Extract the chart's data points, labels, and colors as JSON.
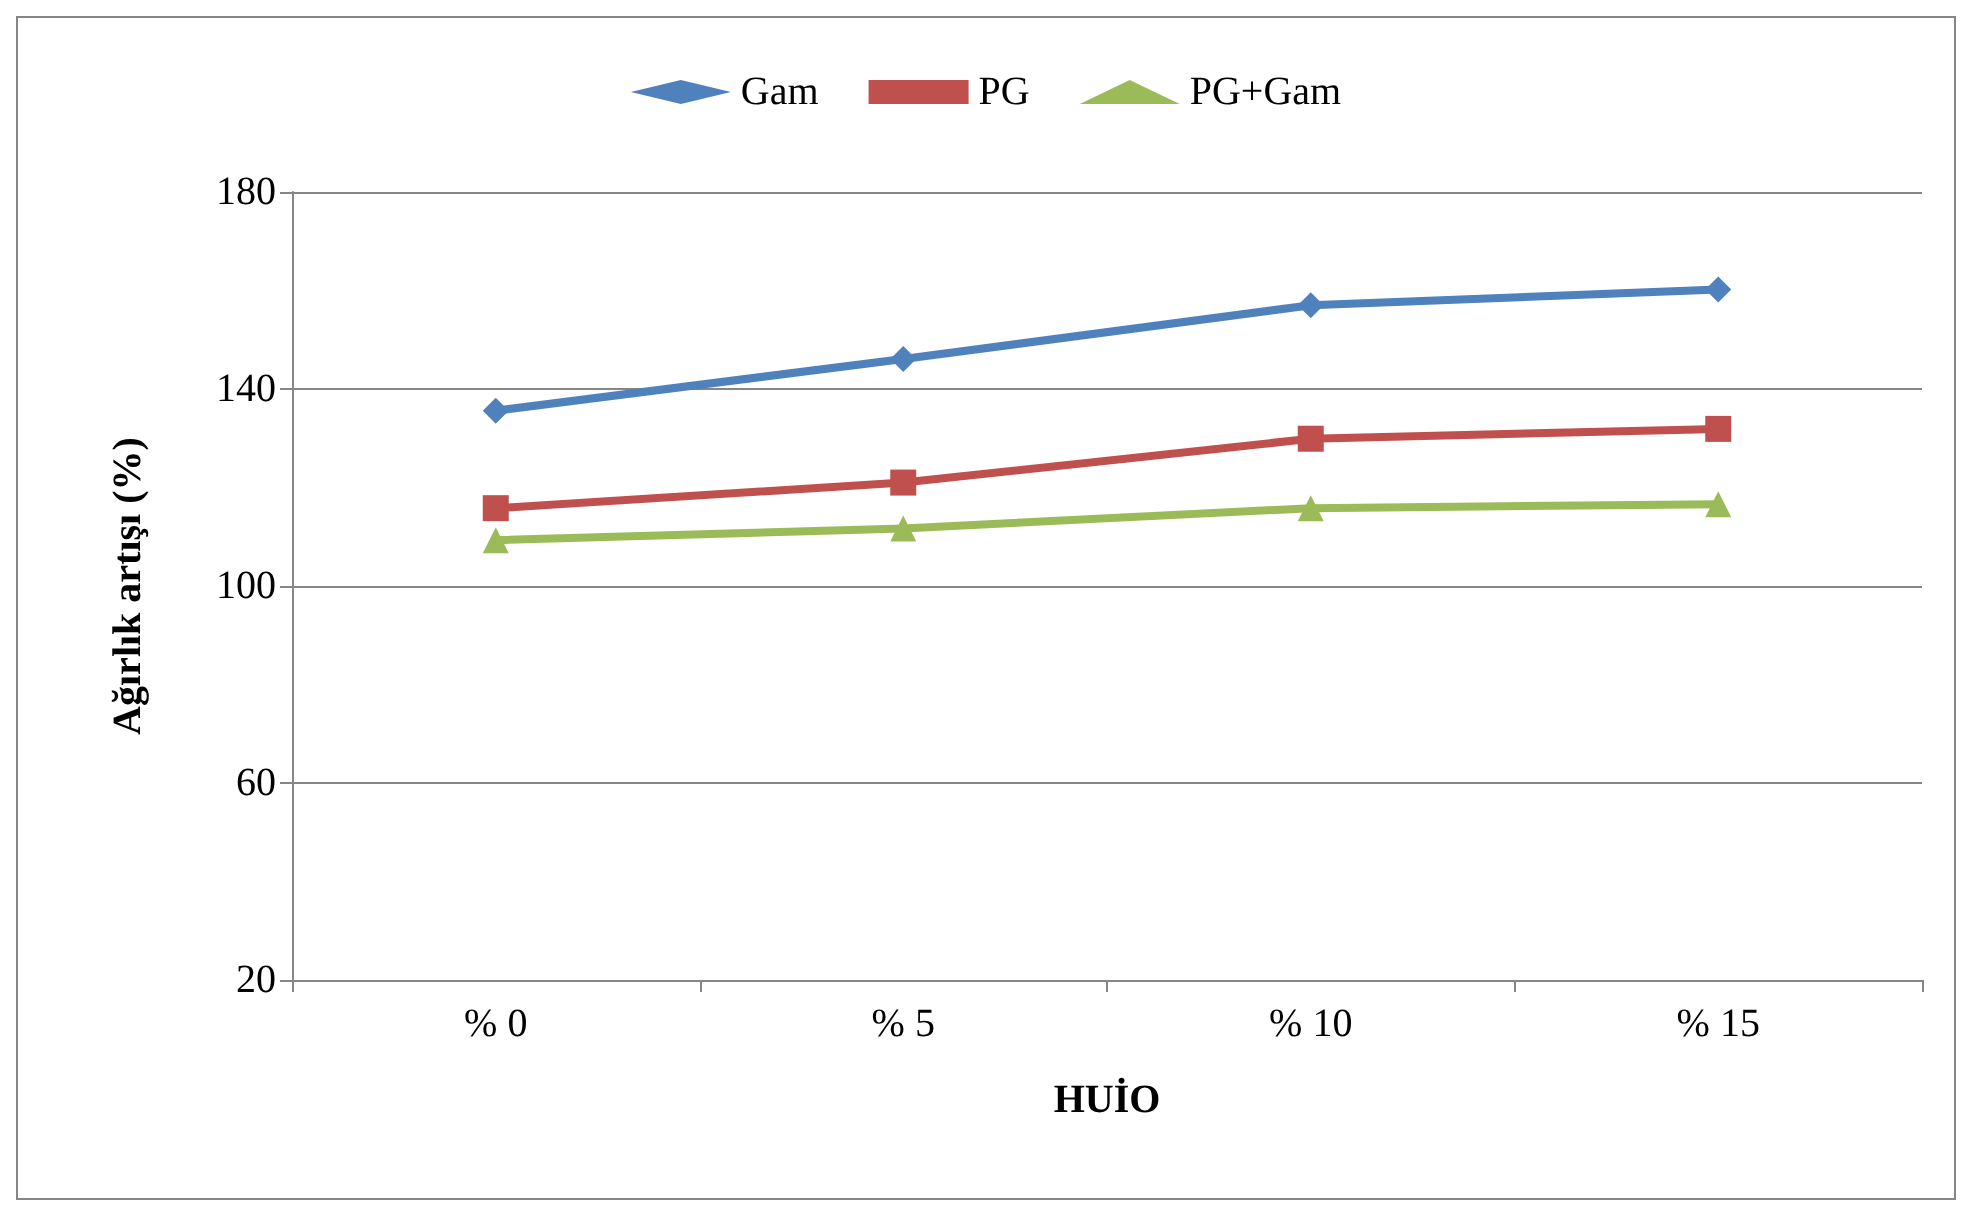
{
  "chart_data": {
    "type": "line",
    "xlabel": "HUİO",
    "ylabel": "Ağırlık artışı (%)",
    "categories": [
      "% 0",
      "% 5",
      "% 10",
      "% 15"
    ],
    "series": [
      {
        "name": "Gam",
        "color": "#4f81bd",
        "marker": "diamond",
        "values": [
          135.6,
          146.1,
          157,
          160.2
        ]
      },
      {
        "name": "PG",
        "color": "#c0504d",
        "marker": "square",
        "values": [
          115.8,
          121,
          129.9,
          131.9
        ]
      },
      {
        "name": "PG+Gam",
        "color": "#9bbb59",
        "marker": "triangle",
        "values": [
          109.3,
          111.7,
          115.8,
          116.6
        ]
      }
    ],
    "ylim": [
      20,
      180
    ],
    "yticks": [
      20,
      60,
      100,
      140,
      180
    ],
    "grid": "y",
    "legend": "top"
  }
}
